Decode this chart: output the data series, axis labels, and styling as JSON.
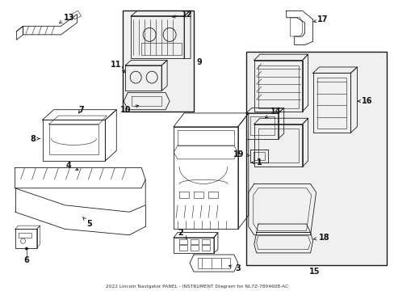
{
  "title": "2022 Lincoln Navigator PANEL - INSTRUMENT Diagram for NL7Z-7804608-AC",
  "bg_color": "#ffffff",
  "line_color": "#1a1a1a",
  "label_color": "#111111",
  "figsize": [
    4.89,
    3.6
  ],
  "dpi": 100,
  "xlim": [
    0,
    489
  ],
  "ylim": [
    0,
    340
  ]
}
